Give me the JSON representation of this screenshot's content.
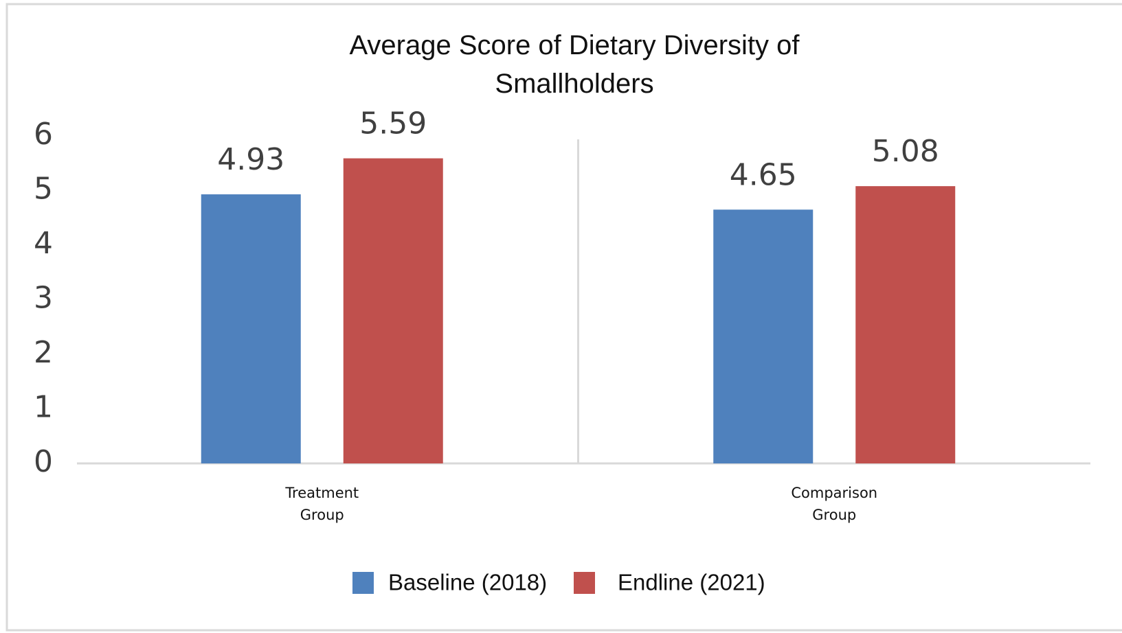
{
  "chart_data": {
    "type": "bar",
    "title": "Average Score of Dietary Diversity of Smallholders",
    "categories": [
      "Treatment Group",
      "Comparison Group"
    ],
    "series": [
      {
        "name": "Baseline (2018)",
        "color": "#4f81bd",
        "values": [
          4.93,
          4.65
        ]
      },
      {
        "name": "Endline (2021)",
        "color": "#c0504d",
        "values": [
          5.59,
          5.08
        ]
      }
    ],
    "ylim": [
      0,
      6
    ],
    "yticks": [
      0,
      1,
      2,
      3,
      4,
      5,
      6
    ],
    "grid": false,
    "legend": "bottom"
  }
}
